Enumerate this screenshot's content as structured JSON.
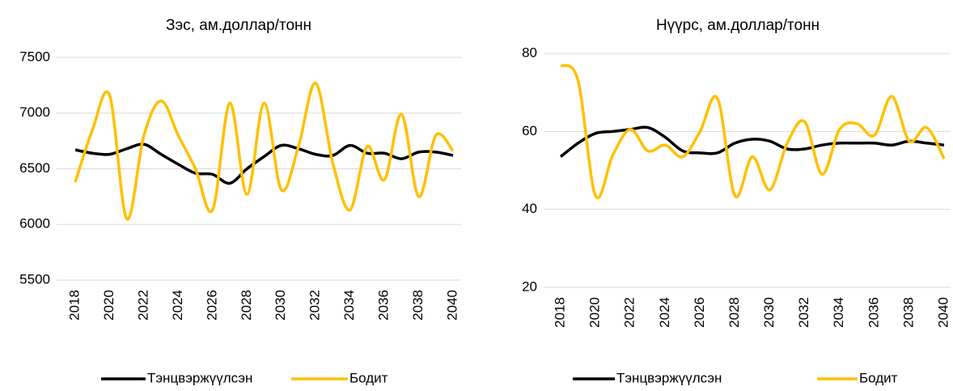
{
  "chart_data": [
    {
      "type": "line",
      "title": "Зэс, ам.доллар/тонн",
      "x": [
        2018,
        2019,
        2020,
        2021,
        2022,
        2023,
        2024,
        2025,
        2026,
        2027,
        2028,
        2029,
        2030,
        2031,
        2032,
        2033,
        2034,
        2035,
        2036,
        2037,
        2038,
        2039,
        2040
      ],
      "xlim": [
        2018,
        2040
      ],
      "xticks": [
        2018,
        2020,
        2022,
        2024,
        2026,
        2028,
        2030,
        2032,
        2034,
        2036,
        2038,
        2040
      ],
      "ylim": [
        5500,
        7500
      ],
      "yticks": [
        5500,
        6000,
        6500,
        7000,
        7500
      ],
      "grid": true,
      "legend": "bottom",
      "series": [
        {
          "name": "Тэнцвэржүүлсэн",
          "color": "#000000",
          "values": [
            6670,
            6640,
            6630,
            6680,
            6720,
            6630,
            6540,
            6460,
            6450,
            6370,
            6500,
            6610,
            6710,
            6680,
            6630,
            6620,
            6710,
            6640,
            6640,
            6590,
            6650,
            6650,
            6620
          ]
        },
        {
          "name": "Бодит",
          "color": "#FFC000",
          "values": [
            6380,
            6850,
            7160,
            6050,
            6800,
            7110,
            6800,
            6500,
            6130,
            7090,
            6270,
            7090,
            6310,
            6700,
            7270,
            6550,
            6130,
            6700,
            6400,
            6990,
            6250,
            6800,
            6660
          ]
        }
      ]
    },
    {
      "type": "line",
      "title": "Нүүрс, ам.доллар/тонн",
      "x": [
        2018,
        2019,
        2020,
        2021,
        2022,
        2023,
        2024,
        2025,
        2026,
        2027,
        2028,
        2029,
        2030,
        2031,
        2032,
        2033,
        2034,
        2035,
        2036,
        2037,
        2038,
        2039,
        2040
      ],
      "xlim": [
        2018,
        2040
      ],
      "xticks": [
        2018,
        2020,
        2022,
        2024,
        2026,
        2028,
        2030,
        2032,
        2034,
        2036,
        2038,
        2040
      ],
      "ylim": [
        20,
        80
      ],
      "yticks": [
        20,
        40,
        60,
        80
      ],
      "grid": true,
      "legend": "bottom",
      "series": [
        {
          "name": "Тэнцвэржүүлсэн",
          "color": "#000000",
          "values": [
            53.5,
            57,
            59.5,
            60,
            60.5,
            61,
            58.5,
            55,
            54.5,
            54.5,
            57,
            58,
            57.5,
            55.5,
            55.5,
            56.5,
            57,
            57,
            57,
            56.5,
            57.5,
            57,
            56.5
          ]
        },
        {
          "name": "Бодит",
          "color": "#FFC000",
          "values": [
            77,
            73,
            43.5,
            54,
            60.5,
            55,
            56.5,
            53.5,
            60,
            68.5,
            43.5,
            53.5,
            45,
            57,
            62.5,
            49,
            60.5,
            62,
            59,
            69,
            57.5,
            61,
            53
          ]
        }
      ]
    }
  ]
}
